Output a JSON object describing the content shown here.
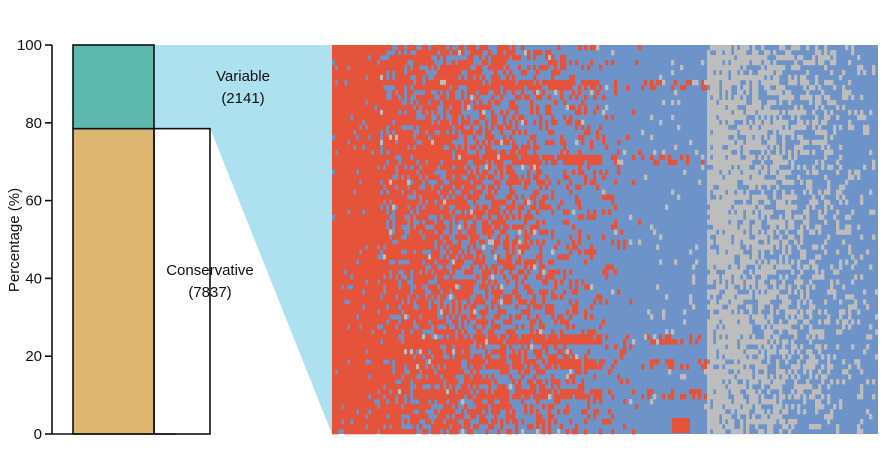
{
  "chart_data": {
    "type": "bar",
    "ylabel": "Percentage (%)",
    "ylim": [
      0,
      100
    ],
    "yticks": [
      "0",
      "20",
      "40",
      "60",
      "80",
      "100"
    ],
    "stacked_bar": {
      "segments": [
        {
          "name": "Conservative",
          "count_label": "(7837)",
          "value": 78.5,
          "color": "#DDB771"
        },
        {
          "name": "Variable",
          "count_label": "(2141)",
          "value": 21.5,
          "color": "#5DB9AE"
        }
      ]
    },
    "heatmap": {
      "colors": {
        "high": "#E5533B",
        "mid": "#6E93C8",
        "low": "#BDBDBD",
        "callout": "#ADE1EF"
      }
    },
    "grid": false,
    "legend": "none"
  }
}
